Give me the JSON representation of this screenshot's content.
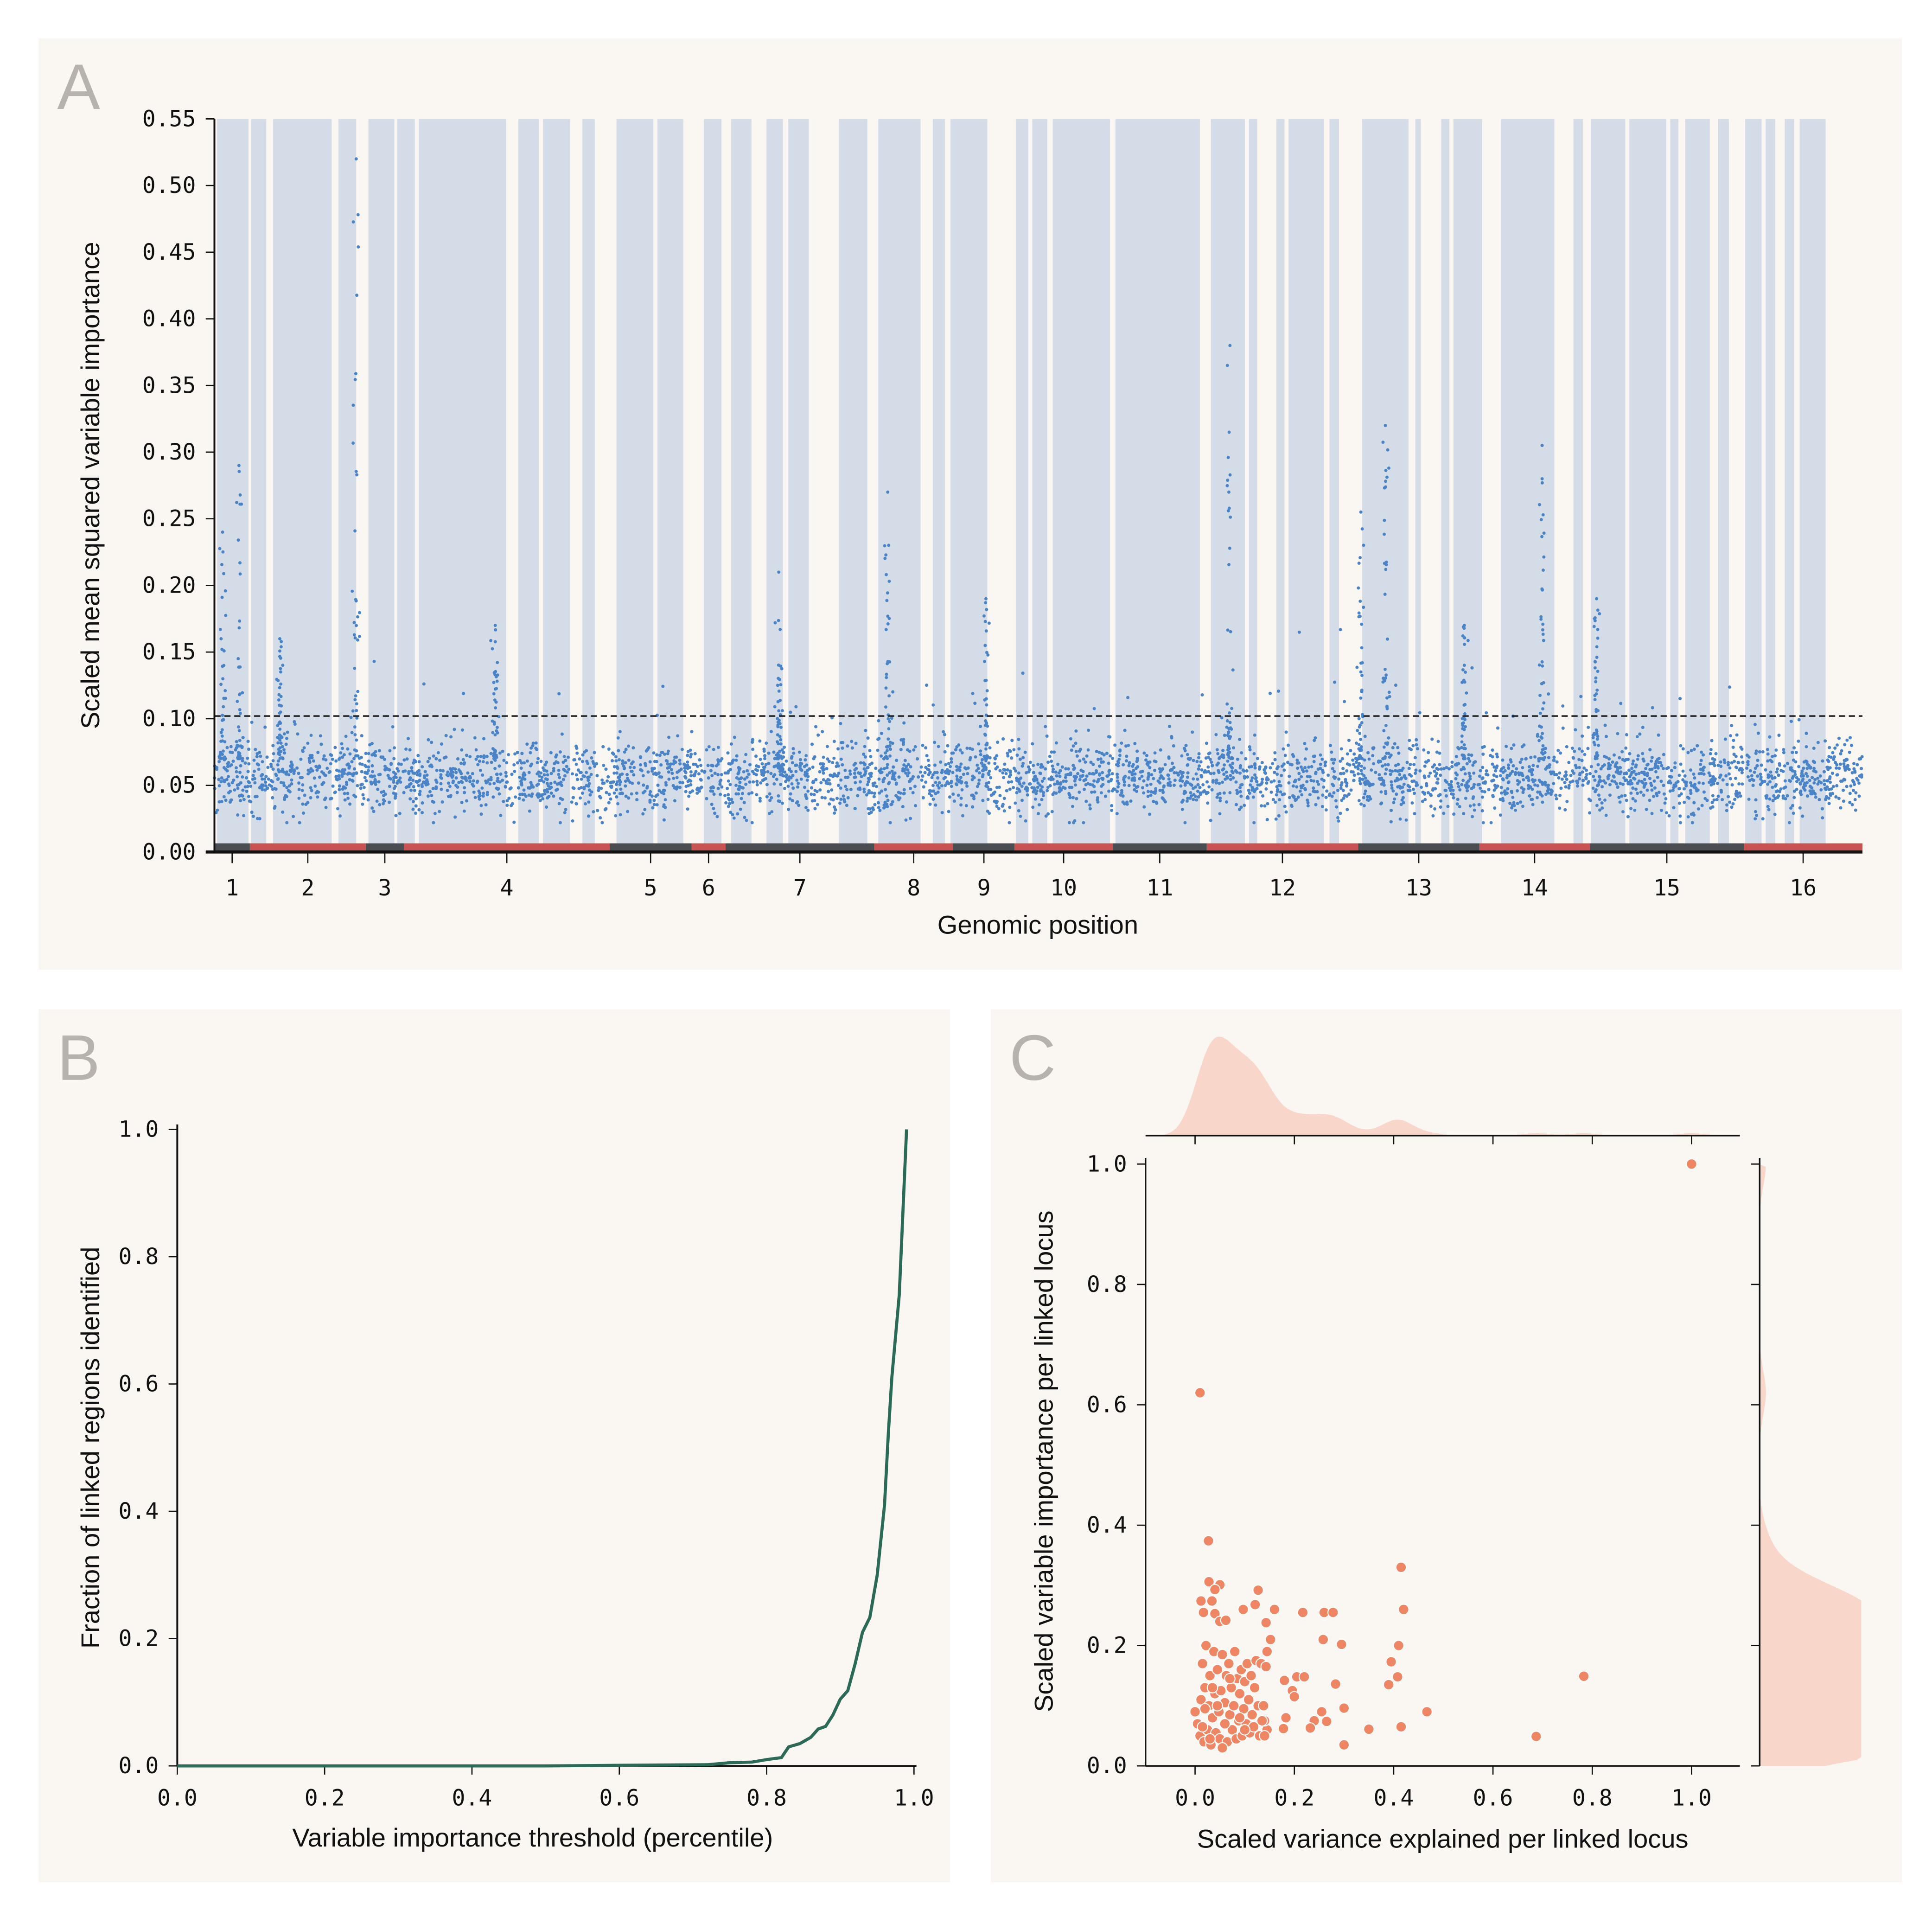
{
  "colors": {
    "panel_bg": "#faf6f1",
    "linked_region": "#d3dce7",
    "points_a": "#4a84c8",
    "chrom_dark": "#4a4d52",
    "chrom_red": "#c85352",
    "curve_b": "#2a6a56",
    "points_c": "#ee8563",
    "marginal_c": "#f8d7ca",
    "letter": "#b7b2ab"
  },
  "chart_data": [
    {
      "panel": "A",
      "type": "scatter",
      "xlabel": "Genomic position",
      "ylabel": "Scaled mean squared variable importance",
      "ylim": [
        0,
        0.55
      ],
      "yticks": [
        "0.00",
        "0.05",
        "0.10",
        "0.15",
        "0.20",
        "0.25",
        "0.30",
        "0.35",
        "0.40",
        "0.45",
        "0.50",
        "0.55"
      ],
      "threshold": 0.102,
      "chromosomes": [
        {
          "label": "1",
          "length_mb": 0.26
        },
        {
          "label": "2",
          "length_mb": 0.85
        },
        {
          "label": "3",
          "length_mb": 0.28
        },
        {
          "label": "4",
          "length_mb": 1.51
        },
        {
          "label": "5",
          "length_mb": 0.6
        },
        {
          "label": "6",
          "length_mb": 0.25
        },
        {
          "label": "7",
          "length_mb": 1.09
        },
        {
          "label": "8",
          "length_mb": 0.58
        },
        {
          "label": "9",
          "length_mb": 0.45
        },
        {
          "label": "10",
          "length_mb": 0.72
        },
        {
          "label": "11",
          "length_mb": 0.69
        },
        {
          "label": "12",
          "length_mb": 1.11
        },
        {
          "label": "13",
          "length_mb": 0.89
        },
        {
          "label": "14",
          "length_mb": 0.81
        },
        {
          "label": "15",
          "length_mb": 1.13
        },
        {
          "label": "16",
          "length_mb": 0.87
        }
      ],
      "linked_regions_mb": [
        [
          0.02,
          0.25
        ],
        [
          0.27,
          0.38
        ],
        [
          0.43,
          0.86
        ],
        [
          0.91,
          1.04
        ],
        [
          1.13,
          1.32
        ],
        [
          1.34,
          1.47
        ],
        [
          1.5,
          2.14
        ],
        [
          2.23,
          2.38
        ],
        [
          2.41,
          2.61
        ],
        [
          2.7,
          2.79
        ],
        [
          2.95,
          3.22
        ],
        [
          3.25,
          3.44
        ],
        [
          3.59,
          3.72
        ],
        [
          3.79,
          3.94
        ],
        [
          4.05,
          4.17
        ],
        [
          4.21,
          4.36
        ],
        [
          4.58,
          4.79
        ],
        [
          4.87,
          5.18
        ],
        [
          5.27,
          5.36
        ],
        [
          5.4,
          5.67
        ],
        [
          5.88,
          5.97
        ],
        [
          6.0,
          6.11
        ],
        [
          6.15,
          6.57
        ],
        [
          6.61,
          7.23
        ],
        [
          7.31,
          7.56
        ],
        [
          7.59,
          7.65
        ],
        [
          7.79,
          7.85
        ],
        [
          7.88,
          8.14
        ],
        [
          8.18,
          8.25
        ],
        [
          8.42,
          8.76
        ],
        [
          8.81,
          8.85
        ],
        [
          9.0,
          9.06
        ],
        [
          9.09,
          9.3
        ],
        [
          9.44,
          9.83
        ],
        [
          9.97,
          10.04
        ],
        [
          10.1,
          10.35
        ],
        [
          10.38,
          10.65
        ],
        [
          10.68,
          10.74
        ],
        [
          10.79,
          10.97
        ],
        [
          11.03,
          11.11
        ],
        [
          11.23,
          11.35
        ],
        [
          11.38,
          11.45
        ],
        [
          11.52,
          11.59
        ],
        [
          11.63,
          11.82
        ]
      ],
      "baseline_mean": 0.055,
      "peaks": [
        {
          "pos_mb": 0.18,
          "max": 0.29
        },
        {
          "pos_mb": 0.06,
          "max": 0.24
        },
        {
          "pos_mb": 1.04,
          "max": 0.52
        },
        {
          "pos_mb": 0.48,
          "max": 0.16
        },
        {
          "pos_mb": 4.14,
          "max": 0.21
        },
        {
          "pos_mb": 4.94,
          "max": 0.27
        },
        {
          "pos_mb": 5.66,
          "max": 0.19
        },
        {
          "pos_mb": 7.45,
          "max": 0.38
        },
        {
          "pos_mb": 8.41,
          "max": 0.255
        },
        {
          "pos_mb": 8.59,
          "max": 0.32
        },
        {
          "pos_mb": 9.74,
          "max": 0.305
        },
        {
          "pos_mb": 10.14,
          "max": 0.19
        },
        {
          "pos_mb": 9.17,
          "max": 0.17
        },
        {
          "pos_mb": 2.06,
          "max": 0.17
        }
      ]
    },
    {
      "panel": "B",
      "type": "line",
      "xlabel": "Variable importance threshold (percentile)",
      "ylabel": "Fraction of linked regions identified",
      "xlim": [
        0,
        1.0
      ],
      "ylim": [
        0,
        1.0
      ],
      "xticks": [
        "0.0",
        "0.2",
        "0.4",
        "0.6",
        "0.8",
        "1.0"
      ],
      "yticks": [
        "0.0",
        "0.2",
        "0.4",
        "0.6",
        "0.8",
        "1.0"
      ],
      "x": [
        0.0,
        0.5,
        0.6,
        0.72,
        0.75,
        0.78,
        0.8,
        0.82,
        0.83,
        0.845,
        0.86,
        0.87,
        0.88,
        0.89,
        0.9,
        0.91,
        0.92,
        0.93,
        0.94,
        0.95,
        0.96,
        0.965,
        0.97,
        0.98,
        0.99
      ],
      "y": [
        0.0,
        0.0,
        0.001,
        0.002,
        0.005,
        0.006,
        0.01,
        0.013,
        0.03,
        0.035,
        0.045,
        0.058,
        0.062,
        0.08,
        0.105,
        0.118,
        0.16,
        0.21,
        0.233,
        0.3,
        0.41,
        0.52,
        0.61,
        0.74,
        1.0
      ]
    },
    {
      "panel": "C",
      "type": "scatter",
      "xlabel": "Scaled variance explained per linked locus",
      "ylabel": "Scaled variable importance per linked locus",
      "xlim": [
        -0.1,
        1.1
      ],
      "ylim": [
        0,
        1.0
      ],
      "xticks": [
        "0.0",
        "0.2",
        "0.4",
        "0.6",
        "0.8",
        "1.0"
      ],
      "yticks": [
        "0.0",
        "0.2",
        "0.4",
        "0.6",
        "0.8",
        "1.0"
      ],
      "marginals": "kde",
      "points": [
        [
          1.0,
          1.0
        ],
        [
          0.01,
          0.62
        ],
        [
          0.027,
          0.374
        ],
        [
          0.415,
          0.33
        ],
        [
          0.42,
          0.26
        ],
        [
          0.41,
          0.2
        ],
        [
          0.395,
          0.173
        ],
        [
          0.408,
          0.148
        ],
        [
          0.39,
          0.135
        ],
        [
          0.415,
          0.065
        ],
        [
          0.467,
          0.09
        ],
        [
          0.783,
          0.149
        ],
        [
          0.687,
          0.049
        ],
        [
          0.35,
          0.061
        ],
        [
          0.3,
          0.035
        ],
        [
          0.3,
          0.096
        ],
        [
          0.295,
          0.202
        ],
        [
          0.283,
          0.136
        ],
        [
          0.265,
          0.074
        ],
        [
          0.255,
          0.09
        ],
        [
          0.24,
          0.075
        ],
        [
          0.232,
          0.063
        ],
        [
          0.258,
          0.21
        ],
        [
          0.26,
          0.255
        ],
        [
          0.278,
          0.255
        ],
        [
          0.217,
          0.255
        ],
        [
          0.16,
          0.26
        ],
        [
          0.143,
          0.238
        ],
        [
          0.152,
          0.21
        ],
        [
          0.145,
          0.19
        ],
        [
          0.127,
          0.292
        ],
        [
          0.121,
          0.268
        ],
        [
          0.097,
          0.26
        ],
        [
          0.05,
          0.301
        ],
        [
          0.028,
          0.306
        ],
        [
          0.04,
          0.293
        ],
        [
          0.034,
          0.274
        ],
        [
          0.012,
          0.274
        ],
        [
          0.017,
          0.255
        ],
        [
          0.04,
          0.253
        ],
        [
          0.05,
          0.24
        ],
        [
          0.062,
          0.242
        ],
        [
          0.18,
          0.142
        ],
        [
          0.196,
          0.125
        ],
        [
          0.2,
          0.115
        ],
        [
          0.205,
          0.148
        ],
        [
          0.22,
          0.148
        ],
        [
          0.183,
          0.08
        ],
        [
          0.178,
          0.062
        ],
        [
          0.145,
          0.06
        ],
        [
          0.14,
          0.075
        ],
        [
          0.0,
          0.09
        ],
        [
          0.005,
          0.07
        ],
        [
          0.01,
          0.05
        ],
        [
          0.012,
          0.11
        ],
        [
          0.015,
          0.17
        ],
        [
          0.018,
          0.04
        ],
        [
          0.02,
          0.13
        ],
        [
          0.022,
          0.2
        ],
        [
          0.025,
          0.06
        ],
        [
          0.028,
          0.1
        ],
        [
          0.03,
          0.15
        ],
        [
          0.032,
          0.035
        ],
        [
          0.035,
          0.08
        ],
        [
          0.038,
          0.19
        ],
        [
          0.04,
          0.12
        ],
        [
          0.042,
          0.055
        ],
        [
          0.045,
          0.16
        ],
        [
          0.048,
          0.09
        ],
        [
          0.05,
          0.045
        ],
        [
          0.052,
          0.125
        ],
        [
          0.055,
          0.185
        ],
        [
          0.058,
          0.07
        ],
        [
          0.06,
          0.105
        ],
        [
          0.063,
          0.15
        ],
        [
          0.065,
          0.04
        ],
        [
          0.068,
          0.17
        ],
        [
          0.07,
          0.085
        ],
        [
          0.073,
          0.13
        ],
        [
          0.075,
          0.06
        ],
        [
          0.078,
          0.1
        ],
        [
          0.08,
          0.19
        ],
        [
          0.083,
          0.045
        ],
        [
          0.085,
          0.145
        ],
        [
          0.088,
          0.075
        ],
        [
          0.09,
          0.12
        ],
        [
          0.093,
          0.16
        ],
        [
          0.095,
          0.05
        ],
        [
          0.098,
          0.095
        ],
        [
          0.1,
          0.14
        ],
        [
          0.103,
          0.07
        ],
        [
          0.105,
          0.17
        ],
        [
          0.108,
          0.11
        ],
        [
          0.11,
          0.055
        ],
        [
          0.113,
          0.15
        ],
        [
          0.115,
          0.085
        ],
        [
          0.118,
          0.065
        ],
        [
          0.12,
          0.13
        ],
        [
          0.123,
          0.175
        ],
        [
          0.127,
          0.1
        ],
        [
          0.13,
          0.05
        ],
        [
          0.133,
          0.17
        ],
        [
          0.135,
          0.075
        ],
        [
          0.138,
          0.1
        ],
        [
          0.14,
          0.05
        ],
        [
          0.143,
          0.165
        ],
        [
          0.055,
          0.03
        ],
        [
          0.03,
          0.045
        ],
        [
          0.015,
          0.065
        ],
        [
          0.045,
          0.1
        ],
        [
          0.07,
          0.145
        ],
        [
          0.02,
          0.095
        ],
        [
          0.06,
          0.07
        ],
        [
          0.09,
          0.08
        ],
        [
          0.1,
          0.06
        ],
        [
          0.035,
          0.13
        ]
      ]
    }
  ],
  "letters": {
    "a": "A",
    "b": "B",
    "c": "C"
  }
}
